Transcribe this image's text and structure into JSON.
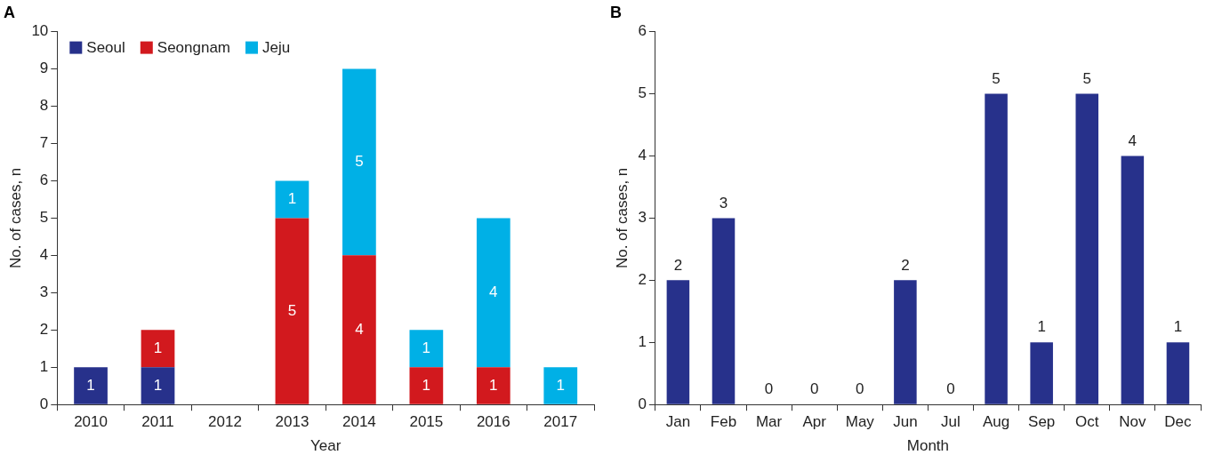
{
  "chart_data": [
    {
      "type": "bar",
      "title": "A",
      "xlabel": "Year",
      "ylabel": "No. of cases, n",
      "categories": [
        "2010",
        "2011",
        "2012",
        "2013",
        "2014",
        "2015",
        "2016",
        "2017"
      ],
      "stacked": true,
      "ylim": [
        0,
        10
      ],
      "yticks": [
        0,
        1,
        2,
        3,
        4,
        5,
        6,
        7,
        8,
        9,
        10
      ],
      "legend": "top left",
      "series": [
        {
          "name": "Seoul",
          "color": "#27318b",
          "values": [
            1,
            1,
            0,
            0,
            0,
            0,
            0,
            0
          ],
          "value_labels": [
            "1",
            "1",
            null,
            null,
            null,
            null,
            null,
            null
          ]
        },
        {
          "name": "Seongnam",
          "color": "#d2191e",
          "values": [
            0,
            1,
            0,
            5,
            4,
            1,
            1,
            0
          ],
          "value_labels": [
            null,
            "1",
            null,
            "5",
            "4",
            "1",
            "1",
            null
          ]
        },
        {
          "name": "Jeju",
          "color": "#00b0e6",
          "values": [
            0,
            0,
            0,
            1,
            5,
            1,
            4,
            1
          ],
          "value_labels": [
            null,
            null,
            null,
            "1",
            "5",
            "1",
            "4",
            "1"
          ]
        }
      ]
    },
    {
      "type": "bar",
      "title": "B",
      "xlabel": "Month",
      "ylabel": "No. of cases, n",
      "categories": [
        "Jan",
        "Feb",
        "Mar",
        "Apr",
        "May",
        "Jun",
        "Jul",
        "Aug",
        "Sep",
        "Oct",
        "Nov",
        "Dec"
      ],
      "values": [
        2,
        3,
        0,
        0,
        0,
        2,
        0,
        5,
        1,
        5,
        4,
        1
      ],
      "color": "#27318b",
      "data_labels": true,
      "ylim": [
        0,
        6
      ],
      "yticks": [
        0,
        1,
        2,
        3,
        4,
        5,
        6
      ]
    }
  ]
}
